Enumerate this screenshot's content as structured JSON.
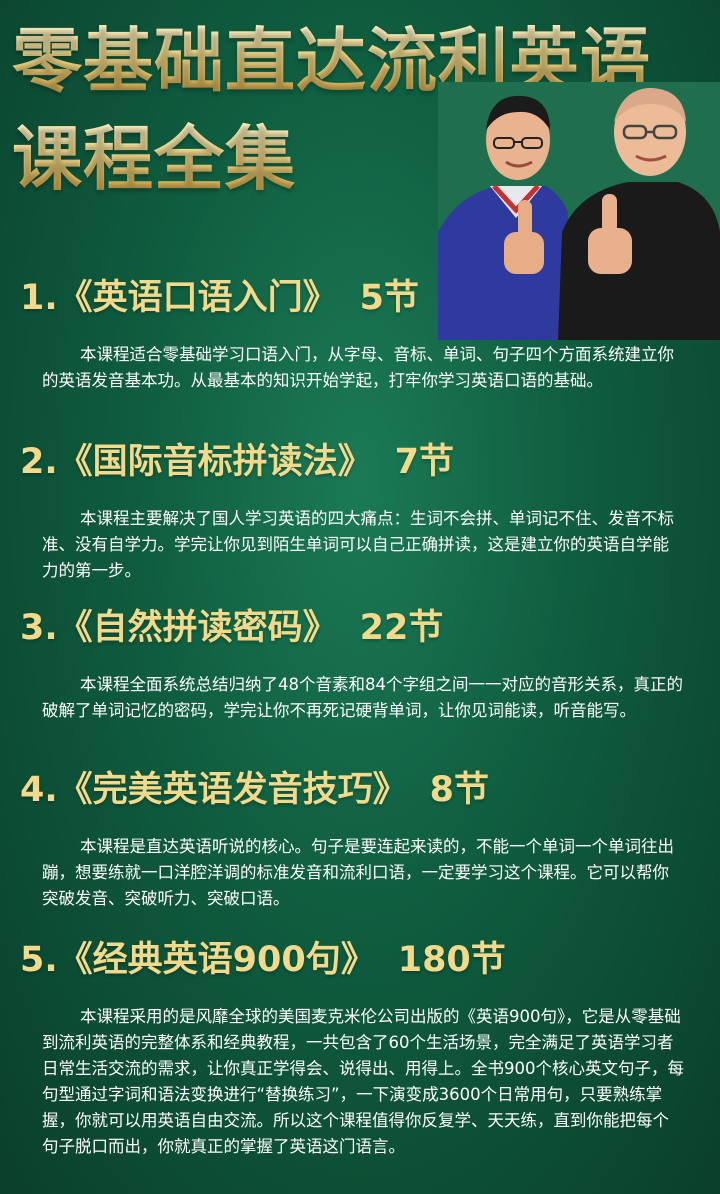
{
  "title": {
    "line1": "零基础直达流利英语",
    "line2": "课程全集"
  },
  "colors": {
    "background": "#0f5c3f",
    "heading_gold": "#f2d98b",
    "text": "#ffffff"
  },
  "courses": [
    {
      "heading": "1.《英语口语入门》",
      "count": "5节",
      "desc": "本课程适合零基础学习口语入门，从字母、音标、单词、句子四个方面系统建立你的英语发音基本功。从最基本的知识开始学起，打牢你学习英语口语的基础。"
    },
    {
      "heading": "2.《国际音标拼读法》",
      "count": "7节",
      "desc": "本课程主要解决了国人学习英语的四大痛点：生词不会拼、单词记不住、发音不标准、没有自学力。学完让你见到陌生单词可以自己正确拼读，这是建立你的英语自学能力的第一步。"
    },
    {
      "heading": "3.《自然拼读密码》",
      "count": "22节",
      "desc": "本课程全面系统总结归纳了48个音素和84个字组之间一一对应的音形关系，真正的破解了单词记忆的密码，学完让你不再死记硬背单词，让你见词能读，听音能写。"
    },
    {
      "heading": "4.《完美英语发音技巧》",
      "count": "8节",
      "desc": "本课程是直达英语听说的核心。句子是要连起来读的，不能一个单词一个单词往出蹦，想要练就一口洋腔洋调的标准发音和流利口语，一定要学习这个课程。它可以帮你突破发音、突破听力、突破口语。"
    },
    {
      "heading": "5.《经典英语900句》",
      "count": "180节",
      "desc": "本课程采用的是风靡全球的美国麦克米伦公司出版的《英语900句》，它是从零基础到流利英语的完整体系和经典教程，一共包含了60个生活场景，完全满足了英语学习者日常生活交流的需求，让你真正学得会、说得出、用得上。全书900个核心英文句子，每句型通过字词和语法变换进行“替换练习”，一下演变成3600个日常用句，只要熟练掌握，你就可以用英语自由交流。所以这个课程值得你反复学、天天练，直到你能把每个句子脱口而出，你就真正的掌握了英语这门语言。"
    }
  ]
}
